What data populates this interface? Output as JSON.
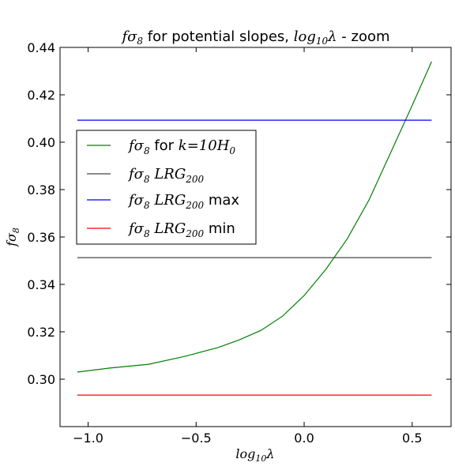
{
  "chart_data": {
    "type": "line",
    "title": {
      "math_prefix": "fσ",
      "math_sub": "8",
      "text_mid": " for potential slopes, ",
      "math_log": "log",
      "math_log_sub": "10",
      "math_lambda": "λ",
      "text_end": " - zoom"
    },
    "xlabel": {
      "main": "log",
      "sub": "10",
      "end": "λ"
    },
    "ylabel": {
      "main": "fσ",
      "sub": "8"
    },
    "xlim": [
      -1.13,
      0.68
    ],
    "ylim": [
      0.28,
      0.44
    ],
    "x_ticks": [
      -1.0,
      -0.5,
      0.0,
      0.5
    ],
    "x_tick_labels": [
      "−1.0",
      "−0.5",
      "0.0",
      "0.5"
    ],
    "y_ticks": [
      0.3,
      0.32,
      0.34,
      0.36,
      0.38,
      0.4,
      0.42,
      0.44
    ],
    "y_tick_labels": [
      "0.30",
      "0.32",
      "0.34",
      "0.36",
      "0.38",
      "0.40",
      "0.42",
      "0.44"
    ],
    "grid": false,
    "legend_position": "center-left",
    "series": [
      {
        "key": "k10H0",
        "color": "#008000",
        "label": {
          "math": "fσ",
          "sub": "8",
          "text": " for ",
          "math2": "k",
          "eq": "=10",
          "math3": "H",
          "sub2": "0"
        },
        "x": [
          -1.05,
          -0.9,
          -0.72,
          -0.55,
          -0.4,
          -0.3,
          -0.2,
          -0.1,
          0.0,
          0.1,
          0.2,
          0.3,
          0.4,
          0.5,
          0.59
        ],
        "y": [
          0.303,
          0.3047,
          0.3063,
          0.3097,
          0.3133,
          0.3166,
          0.3206,
          0.3266,
          0.3353,
          0.3463,
          0.3593,
          0.3756,
          0.3955,
          0.4155,
          0.434
        ]
      },
      {
        "key": "lrg200",
        "color": "#444444",
        "label": {
          "math": "fσ",
          "sub": "8",
          "text": " ",
          "math2": "LRG",
          "sub2": "200",
          "suffix": ""
        },
        "x": [
          -1.05,
          0.59
        ],
        "y": [
          0.3513,
          0.3513
        ]
      },
      {
        "key": "lrg200max",
        "color": "#0000ff",
        "label": {
          "math": "fσ",
          "sub": "8",
          "text": " ",
          "math2": "LRG",
          "sub2": "200",
          "suffix": " max"
        },
        "x": [
          -1.05,
          0.59
        ],
        "y": [
          0.4093,
          0.4093
        ]
      },
      {
        "key": "lrg200min",
        "color": "#ff0000",
        "label": {
          "math": "fσ",
          "sub": "8",
          "text": " ",
          "math2": "LRG",
          "sub2": "200",
          "suffix": " min"
        },
        "x": [
          -1.05,
          0.59
        ],
        "y": [
          0.2933,
          0.2933
        ]
      }
    ]
  }
}
